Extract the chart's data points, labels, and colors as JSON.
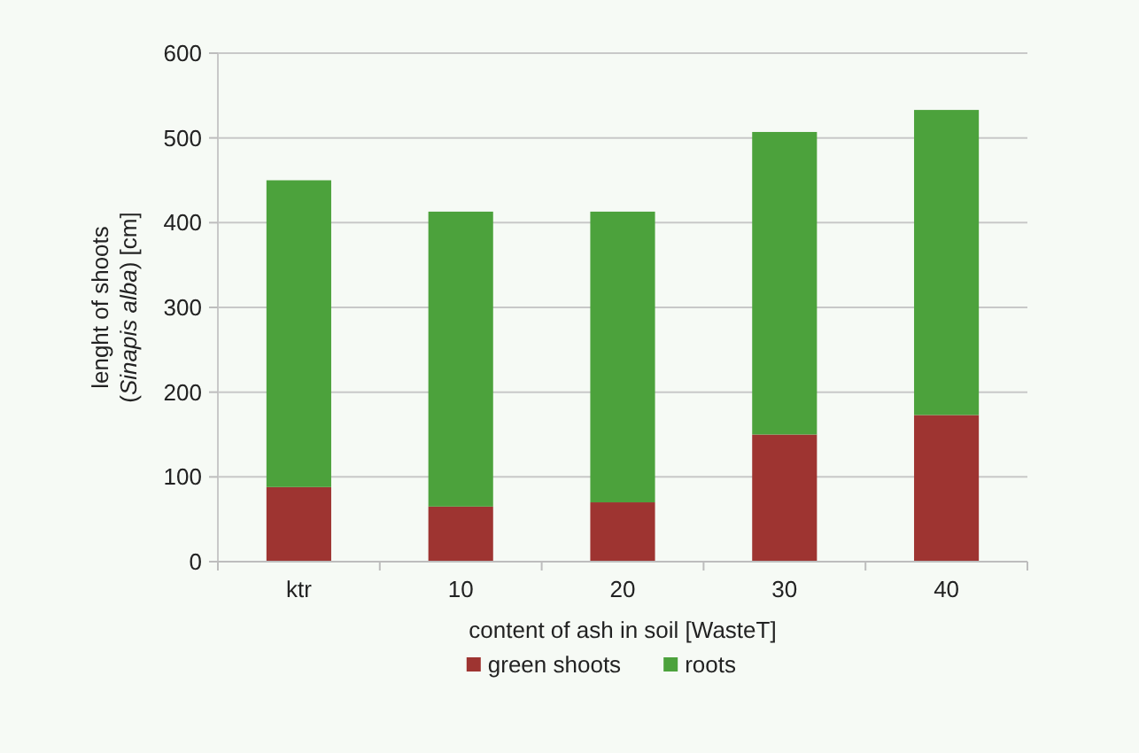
{
  "chart_data": {
    "type": "bar",
    "stacked": true,
    "categories": [
      "ktr",
      "10",
      "20",
      "30",
      "40"
    ],
    "series": [
      {
        "name": "green shoots",
        "color": "#9e3431",
        "values": [
          88,
          65,
          70,
          150,
          173
        ]
      },
      {
        "name": "roots",
        "color": "#4ca23c",
        "values": [
          362,
          348,
          343,
          357,
          360
        ]
      }
    ],
    "ylim": [
      0,
      600
    ],
    "yticks": [
      0,
      100,
      200,
      300,
      400,
      500,
      600
    ],
    "grid": "y",
    "legend": "bottom",
    "xlabel": "content of ash in soil [WasteT]",
    "ylabel": "lenght of shoots (Sinapis alba) [cm]"
  }
}
